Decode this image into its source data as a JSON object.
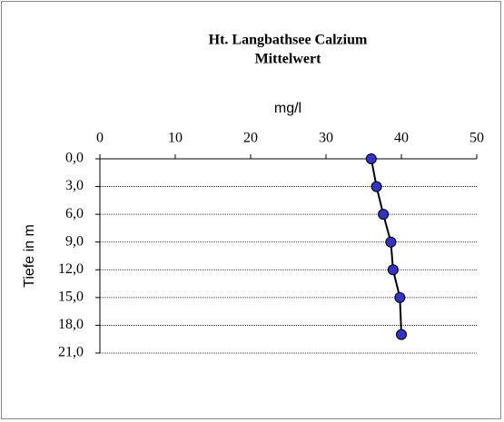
{
  "chart_data": {
    "type": "line",
    "title": "Ht. Langbathsee Calzium",
    "subtitle": "Mittelwert",
    "x_label": "mg/l",
    "y_label": "Tiefe in m",
    "xlim": [
      0,
      50
    ],
    "xticks": [
      0,
      10,
      20,
      30,
      40,
      50
    ],
    "ylim": [
      0,
      21
    ],
    "y_inverted": true,
    "yticks": [
      {
        "value": 0,
        "label": "0,0"
      },
      {
        "value": 3,
        "label": "3,0"
      },
      {
        "value": 6,
        "label": "6,0"
      },
      {
        "value": 9,
        "label": "9,0"
      },
      {
        "value": 12,
        "label": "12,0"
      },
      {
        "value": 15,
        "label": "15,0"
      },
      {
        "value": 18,
        "label": "18,0"
      },
      {
        "value": 21,
        "label": "21,0"
      }
    ],
    "grid": true,
    "series": [
      {
        "line_color": "#000000",
        "color": "#3333cc",
        "depths": [
          0,
          3,
          6,
          9,
          12,
          15,
          19
        ],
        "values": [
          36,
          36.7,
          37.6,
          38.6,
          38.9,
          39.8,
          40
        ]
      }
    ]
  }
}
